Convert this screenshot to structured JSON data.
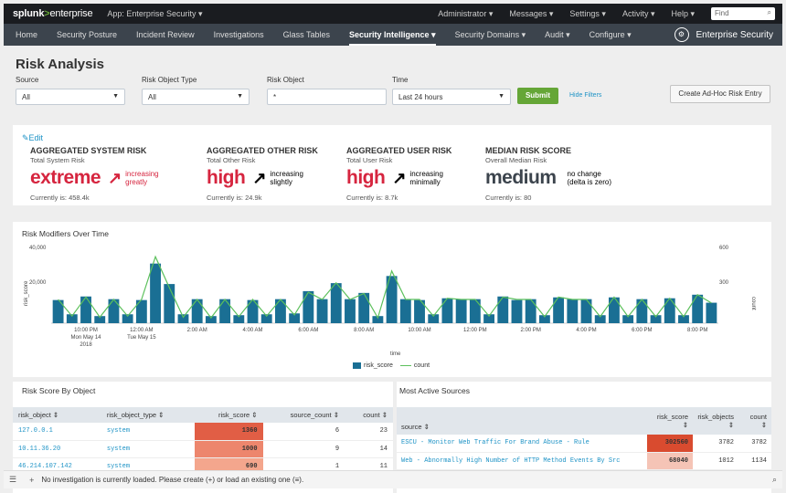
{
  "topbar": {
    "logo_prefix": "splunk",
    "logo_gt": ">",
    "logo_suffix": "enterprise",
    "app": "App: Enterprise Security ▾",
    "menus": [
      "Administrator ▾",
      "Messages ▾",
      "Settings ▾",
      "Activity ▾",
      "Help ▾"
    ],
    "find_placeholder": "Find"
  },
  "nav": {
    "items": [
      "Home",
      "Security Posture",
      "Incident Review",
      "Investigations",
      "Glass Tables",
      "Security Intelligence ▾",
      "Security Domains ▾",
      "Audit ▾",
      "Configure ▾"
    ],
    "active_index": 5,
    "product": "Enterprise Security"
  },
  "page": {
    "title": "Risk Analysis",
    "filters": {
      "source_label": "Source",
      "source_value": "All",
      "object_type_label": "Risk Object Type",
      "object_type_value": "All",
      "object_label": "Risk Object",
      "object_value": "*",
      "time_label": "Time",
      "time_value": "Last 24 hours",
      "submit": "Submit",
      "hide_filters": "Hide Filters"
    },
    "adhoc_button": "Create Ad-Hoc Risk Entry"
  },
  "kpis": {
    "edit": "Edit",
    "items": [
      {
        "title": "AGGREGATED SYSTEM RISK",
        "sub": "Total System Risk",
        "value": "extreme",
        "trend1": "increasing",
        "trend2": "greatly",
        "current": "Currently is: 458.4k",
        "color": "#d6253f"
      },
      {
        "title": "AGGREGATED OTHER RISK",
        "sub": "Total Other Risk",
        "value": "high",
        "trend1": "increasing",
        "trend2": "slightly",
        "current": "Currently is: 24.9k",
        "color": "#d6253f"
      },
      {
        "title": "AGGREGATED USER RISK",
        "sub": "Total User Risk",
        "value": "high",
        "trend1": "increasing",
        "trend2": "minimally",
        "current": "Currently is: 8.7k",
        "color": "#d6253f"
      },
      {
        "title": "MEDIAN RISK SCORE",
        "sub": "Overall Median Risk",
        "value": "medium",
        "trend1": "no change",
        "trend2": "(delta is zero)",
        "current": "Currently is: 80",
        "color": "#3c444d"
      }
    ]
  },
  "chart_panel_title": "Risk Modifiers Over Time",
  "chart_data": {
    "type": "bar",
    "title": "Risk Modifiers Over Time",
    "xlabel": "time",
    "ylabel": "risk_score",
    "y2label": "count",
    "ylim": [
      0,
      40000
    ],
    "y2lim": [
      0,
      600
    ],
    "y_ticks": [
      "40,000",
      "20,000"
    ],
    "y2_ticks": [
      "600",
      "300"
    ],
    "x_ticks": [
      {
        "label": "10:00 PM",
        "sub1": "Mon May 14",
        "sub2": "2018",
        "index": 2
      },
      {
        "label": "12:00 AM",
        "sub1": "Tue May 15",
        "sub2": "",
        "index": 6
      },
      {
        "label": "2:00 AM",
        "sub1": "",
        "sub2": "",
        "index": 10
      },
      {
        "label": "4:00 AM",
        "sub1": "",
        "sub2": "",
        "index": 14
      },
      {
        "label": "6:00 AM",
        "sub1": "",
        "sub2": "",
        "index": 18
      },
      {
        "label": "8:00 AM",
        "sub1": "",
        "sub2": "",
        "index": 22
      },
      {
        "label": "10:00 AM",
        "sub1": "",
        "sub2": "",
        "index": 26
      },
      {
        "label": "12:00 PM",
        "sub1": "",
        "sub2": "",
        "index": 30
      },
      {
        "label": "2:00 PM",
        "sub1": "",
        "sub2": "",
        "index": 34
      },
      {
        "label": "4:00 PM",
        "sub1": "",
        "sub2": "",
        "index": 38
      },
      {
        "label": "6:00 PM",
        "sub1": "",
        "sub2": "",
        "index": 42
      },
      {
        "label": "8:00 PM",
        "sub1": "",
        "sub2": "",
        "index": 46
      }
    ],
    "series": [
      {
        "name": "risk_score",
        "color": "#1a6f94",
        "values": [
          13000,
          5000,
          15000,
          4000,
          13500,
          5000,
          13000,
          33500,
          22000,
          5000,
          13500,
          4000,
          13500,
          4500,
          13000,
          5000,
          13500,
          5500,
          18000,
          13500,
          22500,
          13500,
          17000,
          4000,
          26500,
          13500,
          13000,
          5000,
          14000,
          13500,
          13500,
          5000,
          15000,
          13000,
          13500,
          4500,
          14500,
          13500,
          13500,
          4500,
          14500,
          4500,
          13500,
          4500,
          14000,
          4500,
          16000,
          11500
        ]
      },
      {
        "name": "count",
        "color": "#5cc05c",
        "values": [
          200,
          60,
          220,
          50,
          200,
          60,
          200,
          560,
          300,
          50,
          200,
          45,
          200,
          55,
          200,
          60,
          200,
          70,
          260,
          200,
          340,
          200,
          250,
          45,
          440,
          200,
          200,
          60,
          210,
          200,
          200,
          60,
          220,
          200,
          200,
          55,
          220,
          200,
          200,
          55,
          220,
          55,
          200,
          55,
          210,
          55,
          240,
          170
        ]
      }
    ],
    "legend": "bottom"
  },
  "risk_table": {
    "title": "Risk Score By Object",
    "headers": [
      "risk_object ⇕",
      "risk_object_type ⇕",
      "risk_score ⇕",
      "source_count ⇕",
      "count ⇕"
    ],
    "rows": [
      {
        "object": "127.0.0.1",
        "type": "system",
        "score": "1360",
        "sources": "6",
        "count": "23",
        "bg": "#e15e45"
      },
      {
        "object": "10.11.36.20",
        "type": "system",
        "score": "1000",
        "sources": "9",
        "count": "14",
        "bg": "#ed866d"
      },
      {
        "object": "46.214.107.142",
        "type": "system",
        "score": "690",
        "sources": "1",
        "count": "11",
        "bg": "#f4a68d"
      }
    ]
  },
  "sources_table": {
    "title": "Most Active Sources",
    "headers": [
      "source ⇕",
      "risk_score ⇕",
      "risk_objects ⇕",
      "count ⇕"
    ],
    "rows": [
      {
        "source": "ESCU - Monitor Web Traffic For Brand Abuse - Rule",
        "score": "302560",
        "objects": "3782",
        "count": "3782",
        "bg": "#d94b2f"
      },
      {
        "source": "Web - Abnormally High Number of HTTP Method Events By Src",
        "score": "68040",
        "objects": "1012",
        "count": "1134",
        "bg": "#f5c4b6"
      }
    ]
  },
  "bottombar": {
    "message": "No investigation is currently loaded. Please create (+) or load an existing one (≡)."
  }
}
